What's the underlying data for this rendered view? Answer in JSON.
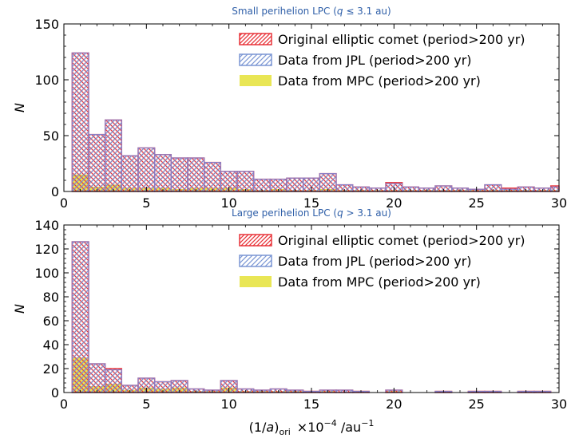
{
  "figure": {
    "xlabel_main": "(1/",
    "xlabel_a": "a",
    "xlabel_close": ")",
    "xlabel_sub": "ori",
    "xlabel_times": "×10",
    "xlabel_exp": "−4",
    "xlabel_unit": " /au",
    "xlabel_unit_exp": "−1"
  },
  "chart_data": [
    {
      "type": "bar",
      "title_prefix": "Small perihelion LPC (",
      "title_var": "q",
      "title_suffix": " ≤ 3.1 au)",
      "xlabel": "",
      "ylabel": "N",
      "xlim": [
        0,
        30
      ],
      "ylim": [
        0,
        150
      ],
      "xticks": [
        0,
        5,
        10,
        15,
        20,
        25,
        30
      ],
      "yticks": [
        0,
        50,
        100,
        150
      ],
      "bin_edges": [
        0.5,
        1.5,
        2.5,
        3.5,
        4.5,
        5.5,
        6.5,
        7.5,
        8.5,
        9.5,
        10.5,
        11.5,
        12.5,
        13.5,
        14.5,
        15.5,
        16.5,
        17.5,
        18.5,
        19.5,
        20.5,
        21.5,
        22.5,
        23.5,
        24.5,
        25.5,
        26.5,
        27.5,
        28.5,
        29.5,
        30.5
      ],
      "legend_position": "top-right",
      "series": [
        {
          "name": "Original elliptic comet (period>200 yr)",
          "color": "#e8343a",
          "style": "hatch-red",
          "values": [
            124,
            51,
            64,
            32,
            39,
            33,
            30,
            30,
            26,
            18,
            18,
            11,
            11,
            12,
            12,
            16,
            6,
            4,
            3,
            8,
            4,
            3,
            5,
            3,
            2,
            6,
            3,
            4,
            3,
            5
          ]
        },
        {
          "name": "Data from JPL (period>200 yr)",
          "color": "#7b96d4",
          "style": "hatch-blue",
          "values": [
            124,
            51,
            64,
            32,
            39,
            33,
            30,
            30,
            26,
            18,
            18,
            11,
            11,
            12,
            12,
            16,
            6,
            4,
            3,
            7,
            4,
            3,
            5,
            3,
            2,
            6,
            2,
            4,
            3,
            4
          ]
        },
        {
          "name": "Data from MPC (period>200 yr)",
          "color": "#e8e44a",
          "style": "fill-yellow",
          "values": [
            15,
            4,
            6,
            3,
            3,
            3,
            2,
            3,
            3,
            3,
            2,
            1,
            2,
            1,
            1,
            2,
            1,
            1,
            1,
            1,
            1,
            1,
            1,
            1,
            1,
            1,
            1,
            1,
            1,
            1
          ]
        }
      ]
    },
    {
      "type": "bar",
      "title_prefix": "Large perihelion LPC (",
      "title_var": "q",
      "title_suffix": " > 3.1 au)",
      "xlabel": "",
      "ylabel": "N",
      "xlim": [
        0,
        30
      ],
      "ylim": [
        0,
        140
      ],
      "xticks": [
        0,
        5,
        10,
        15,
        20,
        25,
        30
      ],
      "yticks": [
        0,
        20,
        40,
        60,
        80,
        100,
        120,
        140
      ],
      "bin_edges": [
        0.5,
        1.5,
        2.5,
        3.5,
        4.5,
        5.5,
        6.5,
        7.5,
        8.5,
        9.5,
        10.5,
        11.5,
        12.5,
        13.5,
        14.5,
        15.5,
        16.5,
        17.5,
        18.5,
        19.5,
        20.5,
        21.5,
        22.5,
        23.5,
        24.5,
        25.5,
        26.5,
        27.5,
        28.5,
        29.5,
        30.5
      ],
      "legend_position": "top-right",
      "series": [
        {
          "name": "Original elliptic comet (period>200 yr)",
          "color": "#e8343a",
          "style": "hatch-red",
          "values": [
            126,
            24,
            20,
            6,
            12,
            9,
            10,
            3,
            2,
            10,
            3,
            2,
            3,
            2,
            1,
            2,
            2,
            1,
            0,
            2,
            0,
            0,
            1,
            0,
            1,
            1,
            0,
            1,
            1,
            0
          ]
        },
        {
          "name": "Data from JPL (period>200 yr)",
          "color": "#7b96d4",
          "style": "hatch-blue",
          "values": [
            126,
            24,
            19,
            6,
            12,
            9,
            10,
            3,
            2,
            10,
            3,
            2,
            3,
            2,
            1,
            2,
            2,
            1,
            0,
            2,
            0,
            0,
            1,
            0,
            1,
            1,
            0,
            1,
            1,
            0
          ]
        },
        {
          "name": "Data from MPC (period>200 yr)",
          "color": "#e8e44a",
          "style": "fill-yellow",
          "values": [
            29,
            5,
            7,
            2,
            4,
            3,
            4,
            1,
            1,
            4,
            1,
            1,
            1,
            1,
            0,
            1,
            0,
            0,
            0,
            1,
            0,
            0,
            0,
            0,
            0,
            0,
            0,
            0,
            0,
            0
          ]
        }
      ]
    }
  ]
}
